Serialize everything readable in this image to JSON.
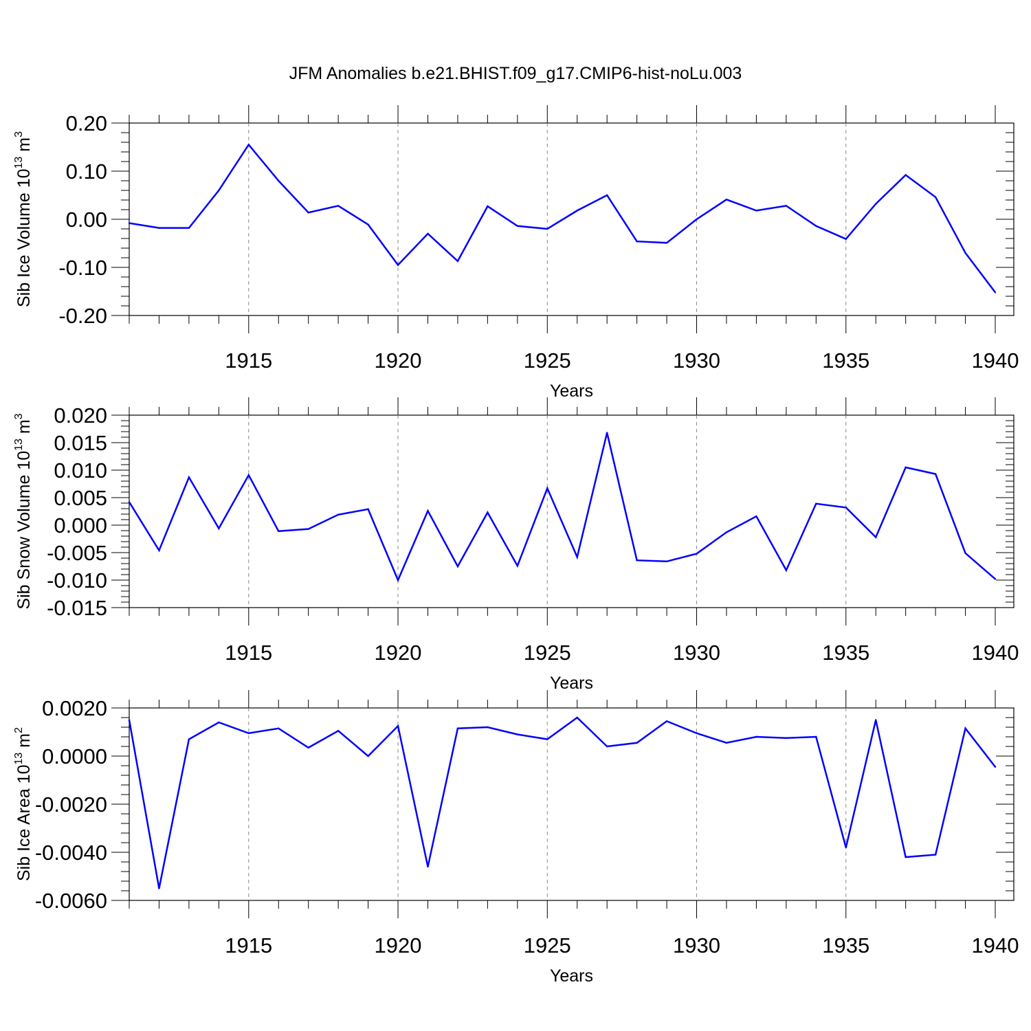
{
  "title": "JFM Anomalies b.e21.BHIST.f09_g17.CMIP6-hist-noLu.003",
  "series_color": "#0000ff",
  "chart_data": [
    {
      "type": "line",
      "ylabel": "Sib Ice Volume 10",
      "ylabel_sup": "13",
      "ylabel_unit": " m",
      "ylabel_unit_sup": "3",
      "xlabel": "Years",
      "xlim": [
        1911,
        1940
      ],
      "ylim": [
        -0.2,
        0.2
      ],
      "yticks": [
        -0.2,
        -0.1,
        0.0,
        0.1,
        0.2
      ],
      "ytick_labels": [
        "-0.20",
        "-0.10",
        "0.00",
        "0.10",
        "0.20"
      ],
      "xticks": [
        1915,
        1920,
        1925,
        1930,
        1935,
        1940
      ],
      "xtick_labels": [
        "1915",
        "1920",
        "1925",
        "1930",
        "1935",
        "1940"
      ],
      "x": [
        1911,
        1912,
        1913,
        1914,
        1915,
        1916,
        1917,
        1918,
        1919,
        1920,
        1921,
        1922,
        1923,
        1924,
        1925,
        1926,
        1927,
        1928,
        1929,
        1930,
        1931,
        1932,
        1933,
        1934,
        1935,
        1936,
        1937,
        1938,
        1939,
        1940
      ],
      "values": [
        -0.008,
        -0.018,
        -0.018,
        0.06,
        0.155,
        0.08,
        0.014,
        0.028,
        -0.011,
        -0.095,
        -0.03,
        -0.087,
        0.027,
        -0.014,
        -0.02,
        0.018,
        0.05,
        -0.046,
        -0.049,
        0.0,
        0.041,
        0.018,
        0.028,
        -0.014,
        -0.041,
        0.032,
        0.092,
        0.046,
        -0.07,
        -0.152
      ]
    },
    {
      "type": "line",
      "ylabel": "Sib Snow Volume 10",
      "ylabel_sup": "13",
      "ylabel_unit": " m",
      "ylabel_unit_sup": "3",
      "xlabel": "Years",
      "xlim": [
        1911,
        1940
      ],
      "ylim": [
        -0.015,
        0.02
      ],
      "yticks": [
        -0.015,
        -0.01,
        -0.005,
        0.0,
        0.005,
        0.01,
        0.015,
        0.02
      ],
      "ytick_labels": [
        "-0.015",
        "-0.010",
        "-0.005",
        "0.000",
        "0.005",
        "0.010",
        "0.015",
        "0.020"
      ],
      "xticks": [
        1915,
        1920,
        1925,
        1930,
        1935,
        1940
      ],
      "xtick_labels": [
        "1915",
        "1920",
        "1925",
        "1930",
        "1935",
        "1940"
      ],
      "x": [
        1911,
        1912,
        1913,
        1914,
        1915,
        1916,
        1917,
        1918,
        1919,
        1920,
        1921,
        1922,
        1923,
        1924,
        1925,
        1926,
        1927,
        1928,
        1929,
        1930,
        1931,
        1932,
        1933,
        1934,
        1935,
        1936,
        1937,
        1938,
        1939,
        1940
      ],
      "values": [
        0.0042,
        -0.0046,
        0.0087,
        -0.0006,
        0.0091,
        -0.0011,
        -0.0007,
        0.0019,
        0.0029,
        -0.01,
        0.0026,
        -0.0075,
        0.0023,
        -0.0074,
        0.0067,
        -0.0058,
        0.0168,
        -0.0064,
        -0.0066,
        -0.0052,
        -0.0013,
        0.0016,
        -0.0082,
        0.0039,
        0.0032,
        -0.0022,
        0.0105,
        0.0093,
        -0.0051,
        -0.0098
      ]
    },
    {
      "type": "line",
      "ylabel": "Sib Ice Area 10",
      "ylabel_sup": "13",
      "ylabel_unit": " m",
      "ylabel_unit_sup": "2",
      "xlabel": "Years",
      "xlim": [
        1911,
        1940
      ],
      "ylim": [
        -0.006,
        0.002
      ],
      "yticks": [
        -0.006,
        -0.004,
        -0.002,
        0.0,
        0.002
      ],
      "ytick_labels": [
        "-0.0060",
        "-0.0040",
        "-0.0020",
        "0.0000",
        "0.0020"
      ],
      "xticks": [
        1915,
        1920,
        1925,
        1930,
        1935,
        1940
      ],
      "xtick_labels": [
        "1915",
        "1920",
        "1925",
        "1930",
        "1935",
        "1940"
      ],
      "x": [
        1911,
        1912,
        1913,
        1914,
        1915,
        1916,
        1917,
        1918,
        1919,
        1920,
        1921,
        1922,
        1923,
        1924,
        1925,
        1926,
        1927,
        1928,
        1929,
        1930,
        1931,
        1932,
        1933,
        1934,
        1935,
        1936,
        1937,
        1938,
        1939,
        1940
      ],
      "values": [
        0.0015,
        -0.0055,
        0.0007,
        0.0014,
        0.00095,
        0.00115,
        0.00035,
        0.00105,
        0.0,
        0.00125,
        -0.0046,
        0.00115,
        0.0012,
        0.0009,
        0.0007,
        0.0016,
        0.0004,
        0.00055,
        0.00145,
        0.00095,
        0.00055,
        0.0008,
        0.00075,
        0.0008,
        -0.0038,
        0.0015,
        -0.0042,
        -0.0041,
        0.00115,
        -0.00045
      ]
    }
  ]
}
